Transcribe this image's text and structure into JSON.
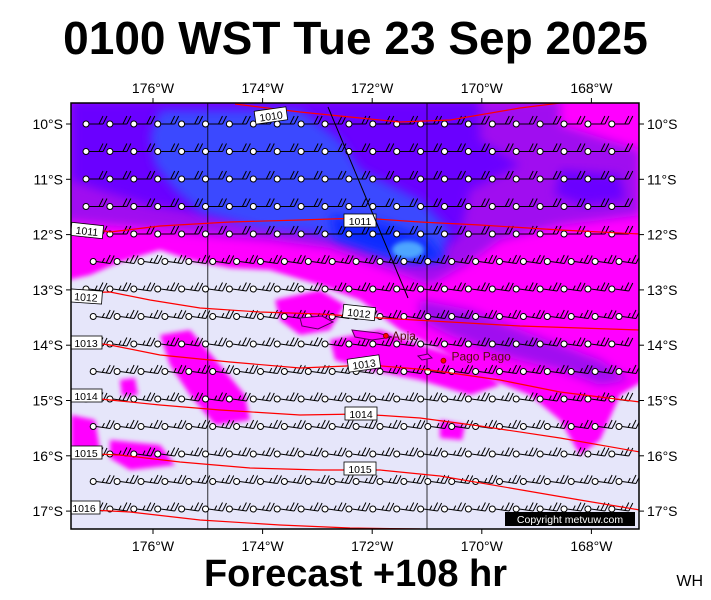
{
  "title": "0100 WST Tue 23 Sep 2025",
  "subtitle": "Forecast +108 hr",
  "corner_badge": "WH",
  "copyright": "Copyright metvuw.com",
  "map": {
    "lon_ticks": [
      {
        "label": "176°W",
        "lon": -176
      },
      {
        "label": "174°W",
        "lon": -174
      },
      {
        "label": "172°W",
        "lon": -172
      },
      {
        "label": "170°W",
        "lon": -170
      },
      {
        "label": "168°W",
        "lon": -168
      }
    ],
    "lat_ticks": [
      {
        "label": "10°S",
        "lat": -10
      },
      {
        "label": "11°S",
        "lat": -11
      },
      {
        "label": "12°S",
        "lat": -12
      },
      {
        "label": "13°S",
        "lat": -13
      },
      {
        "label": "14°S",
        "lat": -14
      },
      {
        "label": "15°S",
        "lat": -15
      },
      {
        "label": "16°S",
        "lat": -16
      },
      {
        "label": "17°S",
        "lat": -17
      }
    ],
    "places": [
      {
        "name": "Apia",
        "lon": -171.75,
        "lat": -13.83
      },
      {
        "name": "Pago Pago",
        "lon": -170.7,
        "lat": -14.28
      }
    ],
    "isobars": [
      {
        "label": "1010"
      },
      {
        "label": "1011"
      },
      {
        "label": "1011"
      },
      {
        "label": "1012"
      },
      {
        "label": "1012"
      },
      {
        "label": "1013"
      },
      {
        "label": "1013"
      },
      {
        "label": "1014"
      },
      {
        "label": "1014"
      },
      {
        "label": "1015"
      },
      {
        "label": "1015"
      },
      {
        "label": "1016"
      }
    ],
    "colors": {
      "background": "#e6e6fa",
      "magenta": "#ff00ff",
      "purple": "#a010f0",
      "violet": "#6a00ff",
      "blue": "#2244ff",
      "deep_blue": "#0a2aff",
      "isobar": "#ff0000"
    }
  }
}
